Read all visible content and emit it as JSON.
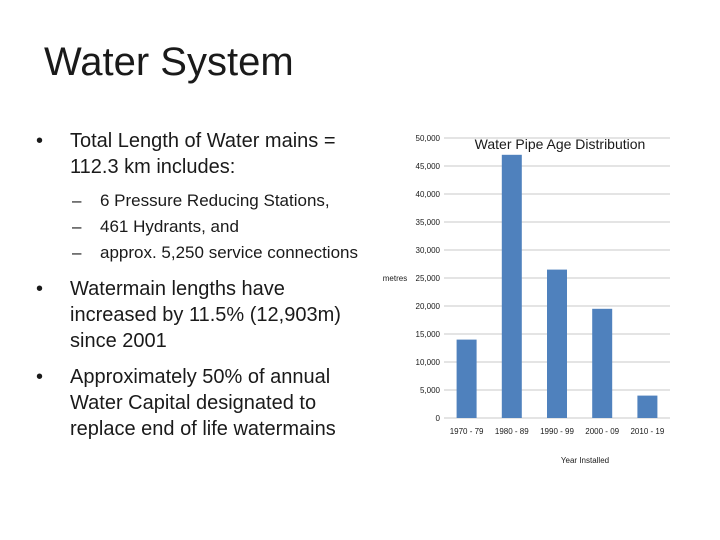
{
  "slide": {
    "title": "Water System"
  },
  "bullets": {
    "b1": "Total Length of Water mains = 112.3 km includes:",
    "sub": [
      "6 Pressure Reducing Stations,",
      "461 Hydrants, and",
      "approx. 5,250 service connections"
    ],
    "b2": "Watermain lengths have increased by 11.5% (12,903m) since 2001",
    "b3": "Approximately 50% of annual Water Capital designated to replace end of life watermains"
  },
  "chart_data": {
    "type": "bar",
    "title": "Water Pipe Age Distribution",
    "xlabel": "Year Installed",
    "ylabel": "metres",
    "categories": [
      "1970 - 79",
      "1980 - 89",
      "1990 - 99",
      "2000 - 09",
      "2010 - 19"
    ],
    "values": [
      14000,
      47000,
      26500,
      19500,
      4000
    ],
    "ylim": [
      0,
      50000
    ],
    "yticks": [
      "0",
      "5,000",
      "10,000",
      "15,000",
      "20,000",
      "25,000",
      "30,000",
      "35,000",
      "40,000",
      "45,000",
      "50,000"
    ],
    "bar_color": "#4F81BD",
    "grid": true,
    "legend": "none"
  }
}
